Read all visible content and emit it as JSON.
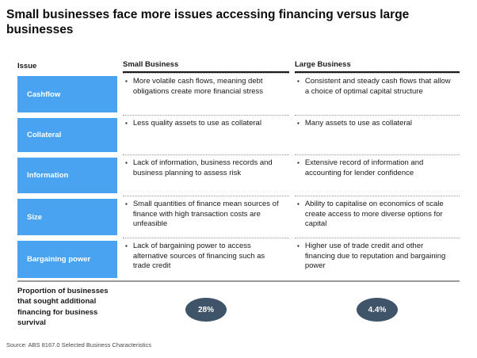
{
  "title": "Small businesses face more issues accessing financing versus large businesses",
  "bullet": "▪",
  "table": {
    "headers": {
      "issue": "Issue",
      "small": "Small Business",
      "large": "Large Business"
    },
    "rows": [
      {
        "label": "Cashflow",
        "small": "More volatile cash flows, meaning debt obligations create more financial stress",
        "large": "Consistent and steady cash flows that allow a choice of optimal capital structure"
      },
      {
        "label": "Collateral",
        "small": "Less quality assets to use as collateral",
        "large": "Many assets to use as collateral"
      },
      {
        "label": "Information",
        "small": "Lack of information, business records and business planning to assess risk",
        "large": "Extensive record of information and accounting for lender confidence"
      },
      {
        "label": "Size",
        "small": "Small quantities of finance mean sources of finance with high transaction costs are unfeasible",
        "large": "Ability to capitalise on economics of scale create access to more diverse options for capital"
      },
      {
        "label": "Bargaining power",
        "small": "Lack of bargaining power to access alternative sources of financing such as trade credit",
        "large": "Higher use of trade credit and other financing due to reputation and bargaining power"
      }
    ]
  },
  "summary": {
    "label": "Proportion of businesses that sought additional financing for business survival",
    "small_value": "28%",
    "large_value": "4.4%"
  },
  "source": "Source: ABS 8167.0 Selected Business Characteristics",
  "colors": {
    "issue_box_blue": "#4AA3F0",
    "badge_dark": "#3F5468",
    "header_rule": "#1a1a1a",
    "divider_gray": "#9a9a9a"
  }
}
